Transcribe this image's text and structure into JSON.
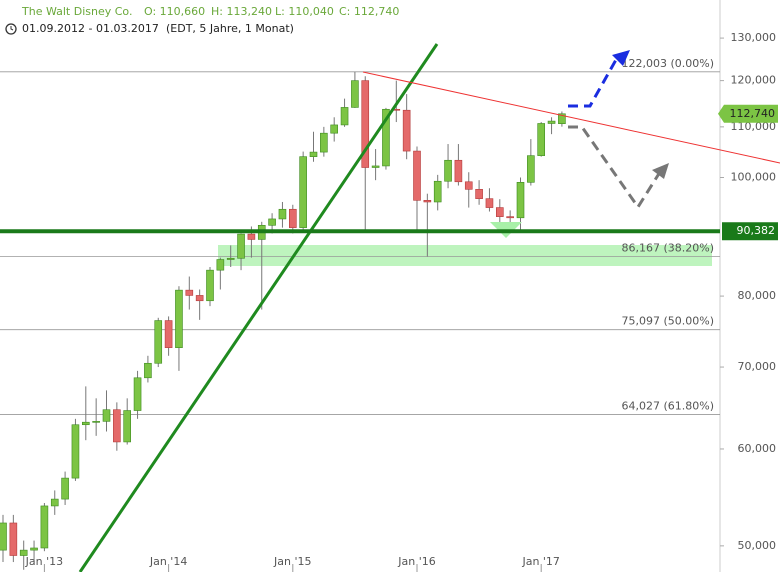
{
  "header": {
    "title": "The Walt Disney Co.",
    "open": "O: 110,660",
    "high": "H: 113,240",
    "low": "L: 110,040",
    "close": "C: 112,740",
    "range": "01.09.2012 - 01.03.2017",
    "info": "(EDT, 5 Jahre, 1 Monat)"
  },
  "chart_data": {
    "type": "candlestick",
    "log_scale": true,
    "categories": [
      null,
      null,
      null,
      null,
      "Jan '13",
      null,
      null,
      null,
      null,
      null,
      null,
      null,
      null,
      null,
      null,
      null,
      "Jan '14",
      null,
      null,
      null,
      null,
      null,
      null,
      null,
      null,
      null,
      null,
      null,
      "Jan '15",
      null,
      null,
      null,
      null,
      null,
      null,
      null,
      null,
      null,
      null,
      null,
      "Jan '16",
      null,
      null,
      null,
      null,
      null,
      null,
      null,
      null,
      null,
      null,
      null,
      "Jan '17",
      null,
      null
    ],
    "open": [
      49.6,
      52.2,
      49.1,
      49.6,
      49.8,
      53.9,
      54.6,
      56.8,
      62.8,
      63.1,
      63.2,
      64.6,
      60.8,
      64.5,
      68.6,
      70.5,
      76.4,
      72.6,
      80.9,
      80.1,
      79.3,
      84.0,
      85.7,
      85.9,
      89.9,
      89.0,
      91.4,
      92.5,
      94.2,
      91.0,
      104.0,
      104.9,
      108.7,
      110.4,
      114.1,
      120.0,
      101.9,
      102.2,
      113.7,
      113.5,
      105.1,
      95.8,
      95.5,
      99.3,
      103.3,
      99.2,
      97.8,
      96.1,
      94.5,
      92.9,
      92.7,
      99.1,
      104.2,
      110.7,
      110.66
    ],
    "high": [
      53.0,
      53.0,
      50.5,
      50.5,
      54.2,
      55.5,
      57.5,
      63.5,
      67.5,
      66.0,
      67.0,
      65.5,
      66.0,
      69.5,
      71.5,
      76.8,
      77.0,
      81.5,
      83.0,
      81.0,
      84.5,
      86.0,
      88.0,
      90.0,
      91.2,
      92.0,
      93.5,
      95.5,
      95.0,
      105.0,
      109.0,
      110.0,
      112.0,
      116.0,
      122.0,
      121.0,
      105.5,
      114.0,
      120.0,
      117.0,
      106.0,
      97.0,
      100.5,
      106.5,
      106.5,
      101.0,
      99.5,
      98.0,
      96.0,
      94.0,
      100.0,
      107.5,
      111.0,
      112.0,
      113.24
    ],
    "low": [
      48.5,
      48.5,
      47.8,
      48.5,
      49.5,
      53.0,
      54.0,
      56.5,
      61.0,
      61.5,
      62.0,
      59.8,
      60.5,
      63.5,
      68.0,
      70.0,
      71.5,
      69.5,
      78.0,
      76.5,
      78.5,
      81.0,
      84.5,
      84.0,
      86.0,
      78.0,
      90.0,
      91.0,
      90.0,
      90.5,
      103.0,
      104.0,
      107.0,
      110.0,
      114.0,
      90.5,
      99.5,
      101.5,
      111.0,
      103.5,
      90.5,
      86.2,
      94.0,
      98.0,
      98.5,
      94.5,
      95.0,
      93.8,
      91.0,
      90.0,
      90.5,
      98.5,
      104.0,
      108.5,
      110.04
    ],
    "close": [
      52.2,
      49.1,
      49.6,
      49.8,
      53.9,
      54.6,
      56.8,
      62.8,
      63.1,
      63.2,
      64.6,
      60.8,
      64.5,
      68.6,
      70.5,
      76.4,
      72.6,
      80.9,
      80.1,
      79.3,
      84.0,
      85.7,
      85.9,
      89.9,
      89.0,
      91.4,
      92.5,
      94.2,
      91.0,
      104.0,
      104.9,
      108.7,
      110.4,
      114.1,
      120.0,
      101.9,
      102.2,
      113.7,
      113.5,
      105.1,
      95.8,
      95.5,
      99.3,
      103.3,
      99.2,
      97.8,
      96.1,
      94.5,
      92.9,
      92.7,
      99.1,
      104.2,
      110.7,
      111.2,
      112.74
    ],
    "up_color": "#7cc444",
    "down_color": "#e46a6a",
    "ylim": [
      47.6,
      134.5
    ],
    "yticks": [
      {
        "value": 50,
        "label": "50,000"
      },
      {
        "value": 60,
        "label": "60,000"
      },
      {
        "value": 70,
        "label": "70,000"
      },
      {
        "value": 80,
        "label": "80,000"
      },
      {
        "value": 100,
        "label": "100,000"
      },
      {
        "value": 110,
        "label": "110,000"
      },
      {
        "value": 120,
        "label": "120,000"
      },
      {
        "value": 130,
        "label": "130,000"
      }
    ],
    "levels": [
      {
        "value": 122.003,
        "label": "122,003 (0.00%)"
      },
      {
        "value": 86.167,
        "label": "86,167 (38.20%)"
      },
      {
        "value": 75.097,
        "label": "75,097 (50.00%)"
      },
      {
        "value": 64.027,
        "label": "64,027 (61.80%)"
      }
    ],
    "support": {
      "value": 90.382,
      "label": "90,382"
    },
    "last_label": "112,740"
  }
}
